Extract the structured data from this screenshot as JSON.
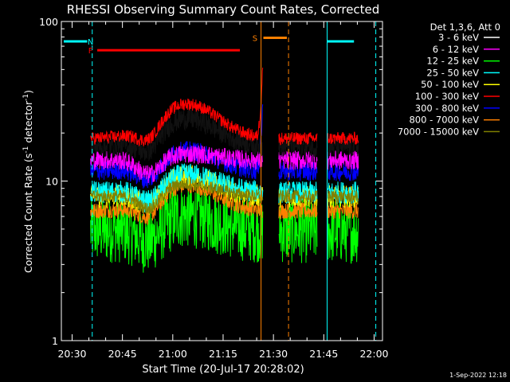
{
  "chart_data": {
    "type": "line",
    "title": "RHESSI Observing Summary Count Rates, Corrected",
    "xlabel": "Start Time (20-Jul-17 20:28:02)",
    "ylabel_main": "Corrected Count Rate (s",
    "ylabel_sup1": "-1",
    "ylabel_mid": " detector",
    "ylabel_sup2": "-1",
    "ylabel_end": ")",
    "y_scale": "log",
    "ylim": [
      1,
      100
    ],
    "y_ticks": [
      {
        "v": 1,
        "label": "1"
      },
      {
        "v": 10,
        "label": "10"
      },
      {
        "v": 100,
        "label": "100"
      }
    ],
    "xlim_min": [
      26.8,
      122.5
    ],
    "x_ticks": [
      {
        "m": 30,
        "label": "20:30"
      },
      {
        "m": 45,
        "label": "20:45"
      },
      {
        "m": 60,
        "label": "21:00"
      },
      {
        "m": 75,
        "label": "21:15"
      },
      {
        "m": 90,
        "label": "21:30"
      },
      {
        "m": 105,
        "label": "21:45"
      },
      {
        "m": 120,
        "label": "22:00"
      }
    ],
    "legend_title": "Det 1,3,6, Att 0",
    "legend_position": "right",
    "series": [
      {
        "name": "3 - 6 keV",
        "color": "#000000",
        "base": 16.5,
        "hump": 1.5,
        "noise": 0.07
      },
      {
        "name": "6 - 12 keV",
        "color": "#ff00ff",
        "base": 13.5,
        "hump": 1.1,
        "noise": 0.06
      },
      {
        "name": "12 - 25 keV",
        "color": "#00ff00",
        "base": 4.9,
        "hump": 1.25,
        "noise": 0.13
      },
      {
        "name": "25 - 50 keV",
        "color": "#00ffff",
        "base": 8.5,
        "hump": 1.3,
        "noise": 0.07
      },
      {
        "name": "50 - 100 keV",
        "color": "#ffff00",
        "base": 8.0,
        "hump": 1.35,
        "noise": 0.07
      },
      {
        "name": "100 - 300 keV",
        "color": "#ff0000",
        "base": 18.5,
        "hump": 1.65,
        "noise": 0.04
      },
      {
        "name": "300 - 800 keV",
        "color": "#0000ff",
        "base": 11.5,
        "hump": 1.35,
        "noise": 0.06
      },
      {
        "name": "800 - 7000 keV",
        "color": "#ff8000",
        "base": 6.5,
        "hump": 1.45,
        "noise": 0.05
      },
      {
        "name": "7000 - 15000 keV",
        "color": "#808000",
        "base": 8.0,
        "hump": 1.2,
        "noise": 0.04
      }
    ],
    "gaps_min": [
      [
        26.8,
        35.5
      ],
      [
        86.8,
        91.5
      ],
      [
        103.0,
        106.0
      ],
      [
        115.3,
        122.5
      ]
    ],
    "flare_spike": {
      "start_min": 85.0,
      "end_min": 86.8,
      "peak": 52
    },
    "flags": [
      {
        "label": "N",
        "color": "#00ffff",
        "level": 75,
        "segments": [
          [
            27.5,
            34.5
          ],
          [
            106.0,
            114.0
          ]
        ],
        "label_at": 35.5
      },
      {
        "label": "F",
        "color": "#ff0000",
        "level": 66,
        "segments": [
          [
            37.5,
            80.0
          ]
        ],
        "label_at": 35.5
      },
      {
        "label": "S",
        "color": "#ff8000",
        "level": 79,
        "segments": [
          [
            87.0,
            94.0
          ]
        ],
        "label_at": 84.5
      }
    ],
    "vlines": [
      {
        "m": 26.8,
        "color": "#00ffff",
        "style": "solid"
      },
      {
        "m": 36.0,
        "color": "#00ffff",
        "style": "dashed"
      },
      {
        "m": 86.3,
        "color": "#ff8000",
        "style": "solid"
      },
      {
        "m": 94.5,
        "color": "#ff8000",
        "style": "dashed"
      },
      {
        "m": 106.0,
        "color": "#00ffff",
        "style": "solid"
      },
      {
        "m": 120.5,
        "color": "#00ffff",
        "style": "dashed"
      }
    ]
  },
  "footer_timestamp": "1-Sep-2022 12:18"
}
